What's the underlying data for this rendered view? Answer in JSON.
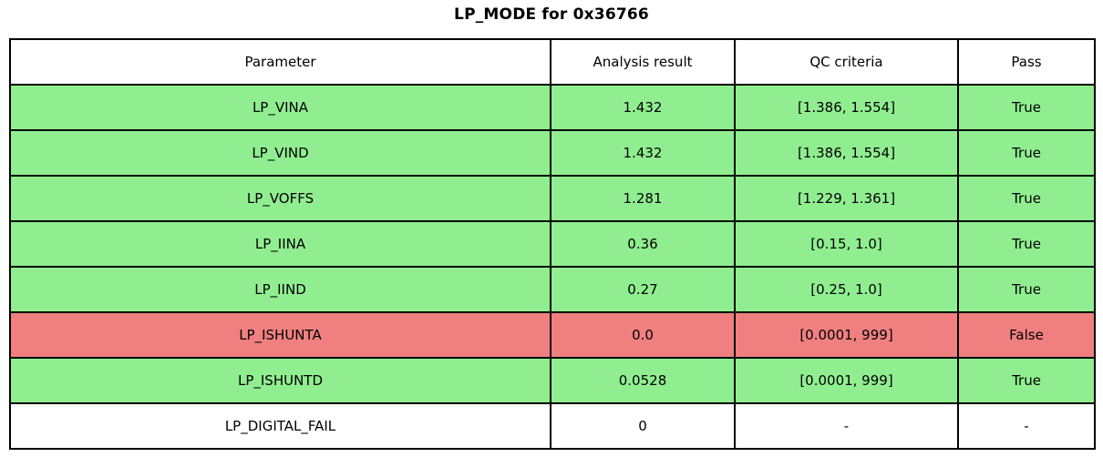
{
  "title": "LP_MODE for 0x36766",
  "colors": {
    "pass": "#90ee90",
    "fail": "#f08080",
    "none": "#ffffff",
    "border": "#000000",
    "text": "#000000"
  },
  "chart_data": {
    "type": "table",
    "title": "LP_MODE for 0x36766",
    "columns": [
      "Parameter",
      "Analysis result",
      "QC criteria",
      "Pass"
    ],
    "rows": [
      {
        "parameter": "LP_VINA",
        "result": "1.432",
        "criteria": "[1.386, 1.554]",
        "pass": "True",
        "status": "pass"
      },
      {
        "parameter": "LP_VIND",
        "result": "1.432",
        "criteria": "[1.386, 1.554]",
        "pass": "True",
        "status": "pass"
      },
      {
        "parameter": "LP_VOFFS",
        "result": "1.281",
        "criteria": "[1.229, 1.361]",
        "pass": "True",
        "status": "pass"
      },
      {
        "parameter": "LP_IINA",
        "result": "0.36",
        "criteria": "[0.15, 1.0]",
        "pass": "True",
        "status": "pass"
      },
      {
        "parameter": "LP_IIND",
        "result": "0.27",
        "criteria": "[0.25, 1.0]",
        "pass": "True",
        "status": "pass"
      },
      {
        "parameter": "LP_ISHUNTA",
        "result": "0.0",
        "criteria": "[0.0001, 999]",
        "pass": "False",
        "status": "fail"
      },
      {
        "parameter": "LP_ISHUNTD",
        "result": "0.0528",
        "criteria": "[0.0001, 999]",
        "pass": "True",
        "status": "pass"
      },
      {
        "parameter": "LP_DIGITAL_FAIL",
        "result": "0",
        "criteria": "-",
        "pass": "-",
        "status": "none"
      }
    ]
  }
}
